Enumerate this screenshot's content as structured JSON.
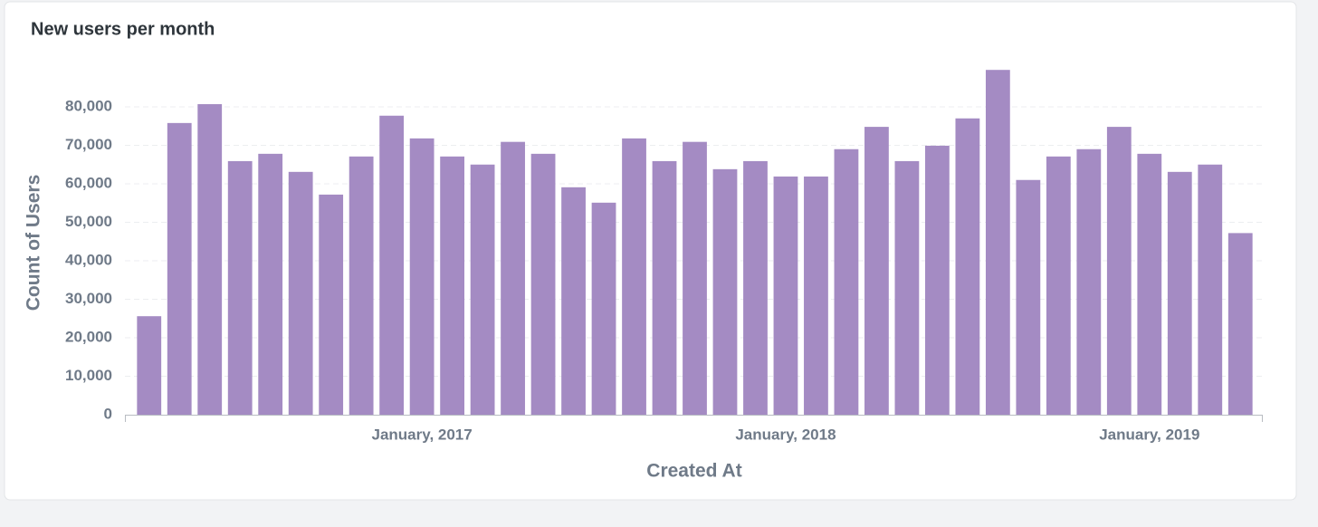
{
  "chart_data": {
    "type": "bar",
    "title": "New users per month",
    "x_label": "Created At",
    "y_label": "Count of Users",
    "categories": [
      null,
      null,
      null,
      null,
      null,
      null,
      null,
      null,
      null,
      "January, 2017",
      null,
      null,
      null,
      null,
      null,
      null,
      null,
      null,
      null,
      null,
      null,
      "January, 2018",
      null,
      null,
      null,
      null,
      null,
      null,
      null,
      null,
      null,
      null,
      null,
      "January, 2019",
      null,
      null,
      null
    ],
    "values": [
      25600,
      75800,
      80700,
      65900,
      67800,
      63100,
      57200,
      67100,
      77700,
      71800,
      67100,
      65000,
      70900,
      67800,
      59100,
      55100,
      71800,
      65900,
      70900,
      63800,
      65900,
      61900,
      61900,
      69000,
      74800,
      65900,
      69900,
      77000,
      89600,
      61000,
      67100,
      69000,
      74800,
      67800,
      63100,
      65000,
      47200
    ],
    "color": "#a48bc3",
    "ylim": [
      0,
      90000
    ],
    "yticks": [
      0,
      {
        "value": 10000,
        "label": "10,000"
      },
      {
        "value": 20000,
        "label": "20,000"
      },
      {
        "value": 30000,
        "label": "30,000"
      },
      {
        "value": 40000,
        "label": "40,000"
      },
      {
        "value": 50000,
        "label": "50,000"
      },
      {
        "value": 60000,
        "label": "60,000"
      },
      {
        "value": 70000,
        "label": "70,000"
      },
      {
        "value": 80000,
        "label": "80,000"
      }
    ],
    "grid": true
  }
}
